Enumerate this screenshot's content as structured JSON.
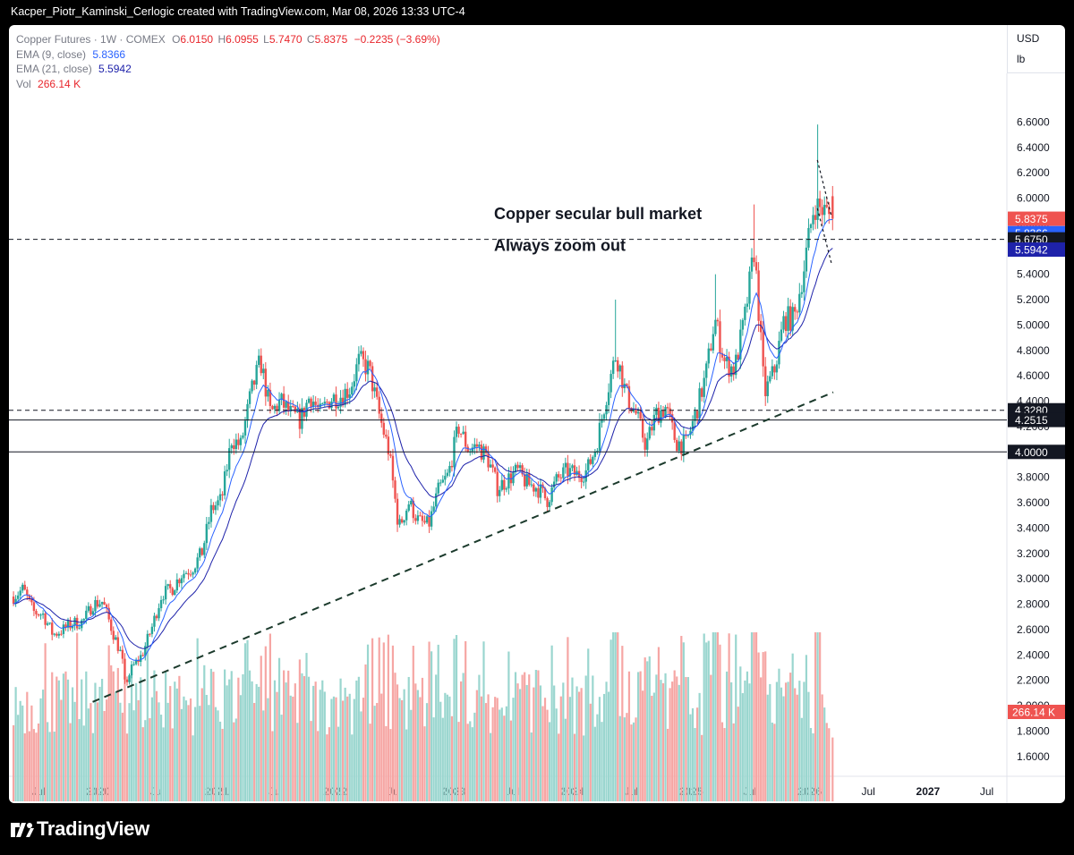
{
  "header": {
    "attribution": "Kacper_Piotr_Kaminski_Cerlogic created with TradingView.com, Mar 08, 2026 13:33 UTC-4"
  },
  "legend": {
    "symbol": "Copper Futures · 1W · COMEX",
    "o_label": "O",
    "o_value": "6.0150",
    "h_label": "H",
    "h_value": "6.0955",
    "l_label": "L",
    "l_value": "5.7470",
    "c_label": "C",
    "c_value": "5.8375",
    "change": "−0.2235 (−3.69%)",
    "ema9_label": "EMA (9, close)",
    "ema9_value": "5.8366",
    "ema21_label": "EMA (21, close)",
    "ema21_value": "5.5942",
    "vol_label": "Vol",
    "vol_value": "266.14 K"
  },
  "units": {
    "currency": "USD",
    "unit": "lb"
  },
  "footer": {
    "brand": "TradingView"
  },
  "colors": {
    "up": "#26a69a",
    "down": "#ef5350",
    "vol_up": "#9ad6cf",
    "vol_down": "#f6a6a4",
    "ema9": "#2962ff",
    "ema21": "#1e22aa",
    "grid": "#f0f3fa",
    "axis_text": "#131722"
  },
  "chart_data": {
    "type": "candlestick",
    "title": "",
    "interval": "1W",
    "x_range": [
      "2019-04",
      "2027-09"
    ],
    "y_range": [
      1.5,
      6.8
    ],
    "y_ticks": [
      "1.6000",
      "1.8000",
      "2.0000",
      "2.2000",
      "2.4000",
      "2.6000",
      "2.8000",
      "3.0000",
      "3.2000",
      "3.4000",
      "3.6000",
      "3.8000",
      "4.0000",
      "4.2000",
      "4.4000",
      "4.6000",
      "4.8000",
      "5.0000",
      "5.2000",
      "5.4000",
      "5.6000",
      "5.8000",
      "6.0000",
      "6.2000",
      "6.4000",
      "6.6000"
    ],
    "x_ticks": [
      {
        "label": "Jul",
        "t": "2019-07",
        "bold": false
      },
      {
        "label": "2020",
        "t": "2020-01",
        "bold": true
      },
      {
        "label": "Jul",
        "t": "2020-07",
        "bold": false
      },
      {
        "label": "2021",
        "t": "2021-01",
        "bold": true
      },
      {
        "label": "Jul",
        "t": "2021-07",
        "bold": false
      },
      {
        "label": "2022",
        "t": "2022-01",
        "bold": true
      },
      {
        "label": "Jul",
        "t": "2022-07",
        "bold": false
      },
      {
        "label": "2023",
        "t": "2023-01",
        "bold": true
      },
      {
        "label": "Jul",
        "t": "2023-07",
        "bold": false
      },
      {
        "label": "2024",
        "t": "2024-01",
        "bold": true
      },
      {
        "label": "Jul",
        "t": "2024-07",
        "bold": false
      },
      {
        "label": "2025",
        "t": "2025-01",
        "bold": true
      },
      {
        "label": "Jul",
        "t": "2025-07",
        "bold": false
      },
      {
        "label": "2026",
        "t": "2026-01",
        "bold": true
      },
      {
        "label": "Jul",
        "t": "2026-07",
        "bold": false
      },
      {
        "label": "2027",
        "t": "2027-01",
        "bold": true
      },
      {
        "label": "Jul",
        "t": "2027-07",
        "bold": false
      }
    ],
    "price_path": [
      [
        "2019-04",
        2.86
      ],
      [
        "2019-05",
        2.92
      ],
      [
        "2019-06",
        2.74
      ],
      [
        "2019-07",
        2.72
      ],
      [
        "2019-08",
        2.56
      ],
      [
        "2019-09",
        2.6
      ],
      [
        "2019-10",
        2.65
      ],
      [
        "2019-11",
        2.66
      ],
      [
        "2019-12",
        2.8
      ],
      [
        "2020-01",
        2.82
      ],
      [
        "2020-02",
        2.58
      ],
      [
        "2020-03",
        2.38
      ],
      [
        "2020-03-20",
        2.15
      ],
      [
        "2020-04",
        2.3
      ],
      [
        "2020-05",
        2.4
      ],
      [
        "2020-06",
        2.62
      ],
      [
        "2020-07",
        2.88
      ],
      [
        "2020-08",
        2.92
      ],
      [
        "2020-09",
        3.04
      ],
      [
        "2020-10",
        3.08
      ],
      [
        "2020-11",
        3.2
      ],
      [
        "2020-12",
        3.55
      ],
      [
        "2021-01",
        3.62
      ],
      [
        "2021-02",
        4.1
      ],
      [
        "2021-03",
        4.05
      ],
      [
        "2021-04",
        4.45
      ],
      [
        "2021-05",
        4.72
      ],
      [
        "2021-06",
        4.3
      ],
      [
        "2021-07",
        4.4
      ],
      [
        "2021-08",
        4.3
      ],
      [
        "2021-09",
        4.25
      ],
      [
        "2021-10",
        4.45
      ],
      [
        "2021-11",
        4.3
      ],
      [
        "2021-12",
        4.42
      ],
      [
        "2022-01",
        4.44
      ],
      [
        "2022-02",
        4.5
      ],
      [
        "2022-03",
        4.72
      ],
      [
        "2022-04",
        4.65
      ],
      [
        "2022-05",
        4.3
      ],
      [
        "2022-06",
        4.0
      ],
      [
        "2022-07",
        3.4
      ],
      [
        "2022-08",
        3.6
      ],
      [
        "2022-09",
        3.45
      ],
      [
        "2022-10",
        3.42
      ],
      [
        "2022-11",
        3.7
      ],
      [
        "2022-12",
        3.82
      ],
      [
        "2023-01",
        4.2
      ],
      [
        "2023-02",
        4.02
      ],
      [
        "2023-03",
        4.05
      ],
      [
        "2023-04",
        3.95
      ],
      [
        "2023-05",
        3.72
      ],
      [
        "2023-06",
        3.78
      ],
      [
        "2023-07",
        3.85
      ],
      [
        "2023-08",
        3.75
      ],
      [
        "2023-09",
        3.72
      ],
      [
        "2023-10",
        3.62
      ],
      [
        "2023-11",
        3.78
      ],
      [
        "2023-12",
        3.85
      ],
      [
        "2024-01",
        3.82
      ],
      [
        "2024-02",
        3.85
      ],
      [
        "2024-03",
        4.05
      ],
      [
        "2024-04",
        4.45
      ],
      [
        "2024-05",
        4.78
      ],
      [
        "2024-06",
        4.45
      ],
      [
        "2024-07",
        4.3
      ],
      [
        "2024-08",
        4.05
      ],
      [
        "2024-09",
        4.3
      ],
      [
        "2024-10",
        4.35
      ],
      [
        "2024-11",
        4.08
      ],
      [
        "2024-12",
        4.05
      ],
      [
        "2025-01",
        4.3
      ],
      [
        "2025-02",
        4.6
      ],
      [
        "2025-03",
        5.05
      ],
      [
        "2025-04",
        4.7
      ],
      [
        "2025-05",
        4.65
      ],
      [
        "2025-06",
        5.05
      ],
      [
        "2025-07",
        5.6
      ],
      [
        "2025-08",
        4.45
      ],
      [
        "2025-09",
        4.65
      ],
      [
        "2025-10",
        5.05
      ],
      [
        "2025-11",
        5.05
      ],
      [
        "2025-12",
        5.45
      ],
      [
        "2026-01",
        5.95
      ],
      [
        "2026-02",
        5.9
      ],
      [
        "2026-03",
        5.8375
      ]
    ],
    "spikes": [
      {
        "t": "2024-05",
        "high": 5.2
      },
      {
        "t": "2025-03-15",
        "high": 5.4
      },
      {
        "t": "2025-07",
        "high": 5.95
      },
      {
        "t": "2026-01-25",
        "high": 6.58
      }
    ],
    "last_candle": {
      "open": 6.015,
      "high": 6.0955,
      "low": 5.747,
      "close": 5.8375,
      "volume": "266.14 K"
    },
    "ema9_last": 5.8366,
    "ema21_last": 5.5942,
    "horizontal_lines": [
      {
        "value": 5.675,
        "style": "dashed",
        "label": "5.6750"
      },
      {
        "value": 4.328,
        "style": "dashed",
        "label": "4.3280"
      },
      {
        "value": 4.2515,
        "style": "solid",
        "label": "4.2515"
      },
      {
        "value": 4.0,
        "style": "solid",
        "label": "4.0000"
      }
    ],
    "trendline": {
      "from": [
        "2019-12",
        2.03
      ],
      "to": [
        "2026-03",
        4.47
      ],
      "style": "dashed"
    },
    "wedge": [
      {
        "from": [
          "2026-01-25",
          6.3
        ],
        "to": [
          "2026-03-10",
          5.85
        ]
      },
      {
        "from": [
          "2026-01-25",
          5.92
        ],
        "to": [
          "2026-03-10",
          5.48
        ]
      }
    ],
    "price_labels": [
      {
        "value": 5.8375,
        "text": "5.8375",
        "color": "#ef5350",
        "offset": 0
      },
      {
        "value": 5.8366,
        "text": "5.8366",
        "color": "#2962ff",
        "offset": 1
      },
      {
        "value": 5.675,
        "text": "5.6750",
        "color": "#131722",
        "offset": 0
      },
      {
        "value": 5.5942,
        "text": "5.5942",
        "color": "#1e22aa",
        "offset": 0
      },
      {
        "value": 4.328,
        "text": "4.3280",
        "color": "#131722",
        "offset": 0
      },
      {
        "value": 4.2515,
        "text": "4.2515",
        "color": "#131722",
        "offset": 0
      },
      {
        "value": 4.0,
        "text": "4.0000",
        "color": "#131722",
        "offset": 0
      }
    ],
    "annotations": [
      "Copper secular bull market",
      "Always zoom out"
    ],
    "volume_label": "266.14 K",
    "grid": false
  }
}
